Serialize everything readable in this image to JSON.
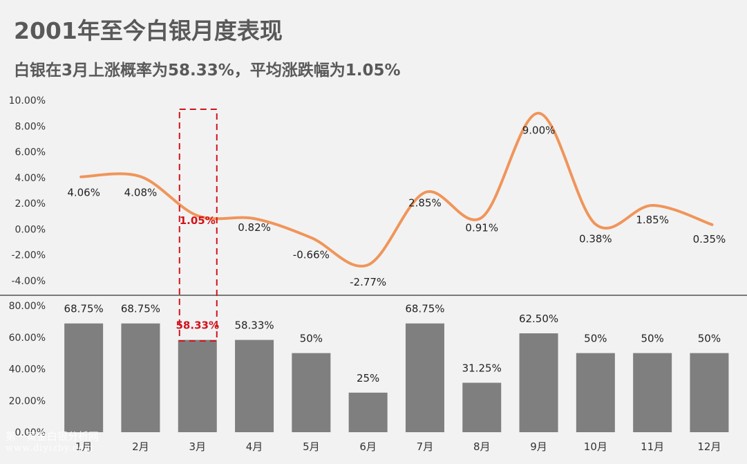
{
  "header": {
    "title": "2001年至今白银月度表现",
    "subtitle": "白银在3月上涨概率为58.33%，平均涨跌幅为1.05%"
  },
  "watermark": {
    "line1": "第一黄金白银分析网",
    "line2": "www.diyizby.com"
  },
  "chart_data": [
    {
      "type": "line",
      "smooth": true,
      "categories": [
        "1月",
        "2月",
        "3月",
        "4月",
        "5月",
        "6月",
        "7月",
        "8月",
        "9月",
        "10月",
        "11月",
        "12月"
      ],
      "series": [
        {
          "values": [
            4.06,
            4.08,
            1.05,
            0.82,
            -0.66,
            -2.77,
            2.85,
            0.91,
            9.0,
            0.38,
            1.85,
            0.35
          ]
        }
      ],
      "data_labels": [
        "4.06%",
        "4.08%",
        "1.05%",
        "0.82%",
        "-0.66%",
        "-2.77%",
        "2.85%",
        "0.91%",
        "9.00%",
        "0.38%",
        "1.85%",
        "0.35%"
      ],
      "ylim": [
        -4,
        10
      ],
      "yticks": [
        10,
        8,
        6,
        4,
        2,
        0,
        -2,
        -4
      ],
      "ytick_labels": [
        "10.00%",
        "8.00%",
        "6.00%",
        "4.00%",
        "2.00%",
        "0.00%",
        "-2.00%",
        "-4.00%"
      ],
      "highlight_category": "3月",
      "color": "#f0955a"
    },
    {
      "type": "bar",
      "categories": [
        "1月",
        "2月",
        "3月",
        "4月",
        "5月",
        "6月",
        "7月",
        "8月",
        "9月",
        "10月",
        "11月",
        "12月"
      ],
      "series": [
        {
          "values": [
            68.75,
            68.75,
            58.33,
            58.33,
            50,
            25,
            68.75,
            31.25,
            62.5,
            50,
            50,
            50
          ]
        }
      ],
      "data_labels": [
        "68.75%",
        "68.75%",
        "58.33%",
        "58.33%",
        "50%",
        "25%",
        "68.75%",
        "31.25%",
        "62.50%",
        "50%",
        "50%",
        "50%"
      ],
      "ylim": [
        0,
        80
      ],
      "yticks": [
        80,
        60,
        40,
        20,
        0
      ],
      "ytick_labels": [
        "80.00%",
        "60.00%",
        "40.00%",
        "20.00%",
        "0.00%"
      ],
      "highlight_category": "3月",
      "color": "#7f7f7f"
    }
  ],
  "colors": {
    "highlight": "#d0121b",
    "text": "#222222",
    "axis_text": "#333333",
    "divider": "#000000"
  }
}
